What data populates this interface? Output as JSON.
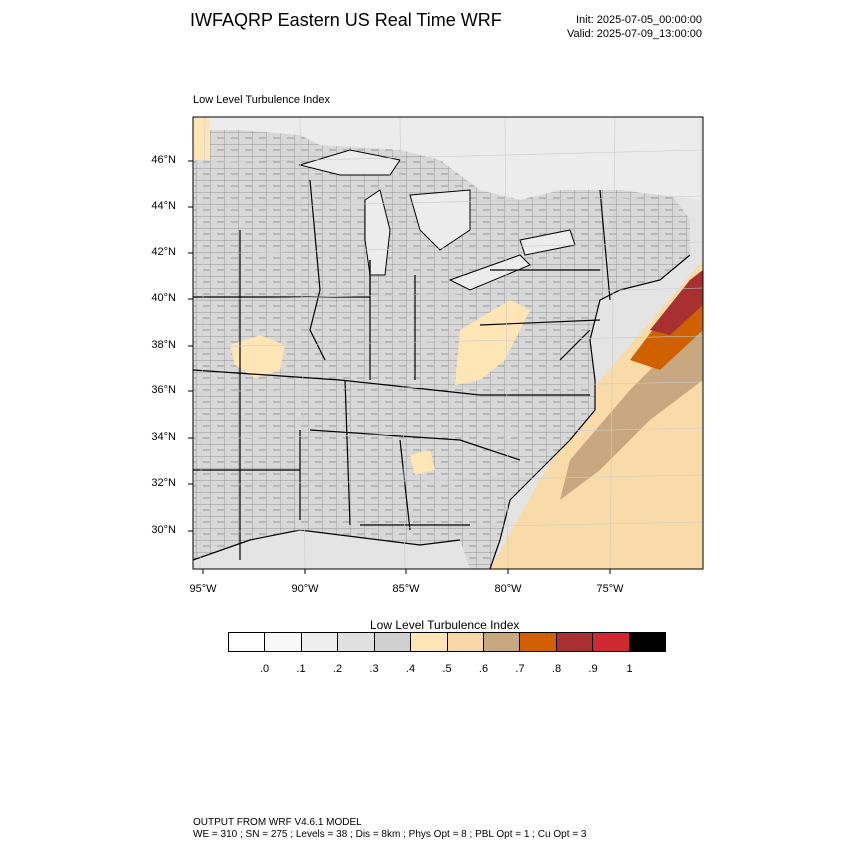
{
  "header": {
    "title": "IWFAQRP Eastern US Real Time WRF",
    "init": "Init: 2025-07-05_00:00:00",
    "valid": "Valid: 2025-07-09_13:00:00"
  },
  "map": {
    "label": "Low Level Turbulence Index",
    "lat_labels": [
      "46°N",
      "44°N",
      "42°N",
      "40°N",
      "38°N",
      "36°N",
      "34°N",
      "32°N",
      "30°N"
    ],
    "lon_labels": [
      "95°W",
      "90°W",
      "85°W",
      "80°W",
      "75°W"
    ],
    "colors": {
      "land": "#d8d8d8",
      "lake": "#ececec",
      "ocean_gray": "#dcdcdc",
      "light_tan": "#f8dba8",
      "tan": "#c8a880",
      "orange": "#d06000",
      "dark_red": "#a83030",
      "boundary": "#000000"
    }
  },
  "colorbar": {
    "title": "Low Level Turbulence Index",
    "colors": [
      "#ffffff",
      "#f8f8f8",
      "#eeeeee",
      "#e0e0e0",
      "#d0d0d0",
      "#fde5b6",
      "#f8d8a8",
      "#c8a880",
      "#d06000",
      "#a83030",
      "#d02830",
      "#000000"
    ],
    "labels": [
      ".0",
      ".1",
      ".2",
      ".3",
      ".4",
      ".5",
      ".6",
      ".7",
      ".8",
      ".9",
      "1"
    ]
  },
  "footer": {
    "line1": "OUTPUT FROM WRF V4.6.1 MODEL",
    "line2": "WE = 310 ; SN = 275 ; Levels = 38 ; Dis = 8km ; Phys Opt = 8 ; PBL Opt = 1 ; Cu Opt = 3"
  }
}
